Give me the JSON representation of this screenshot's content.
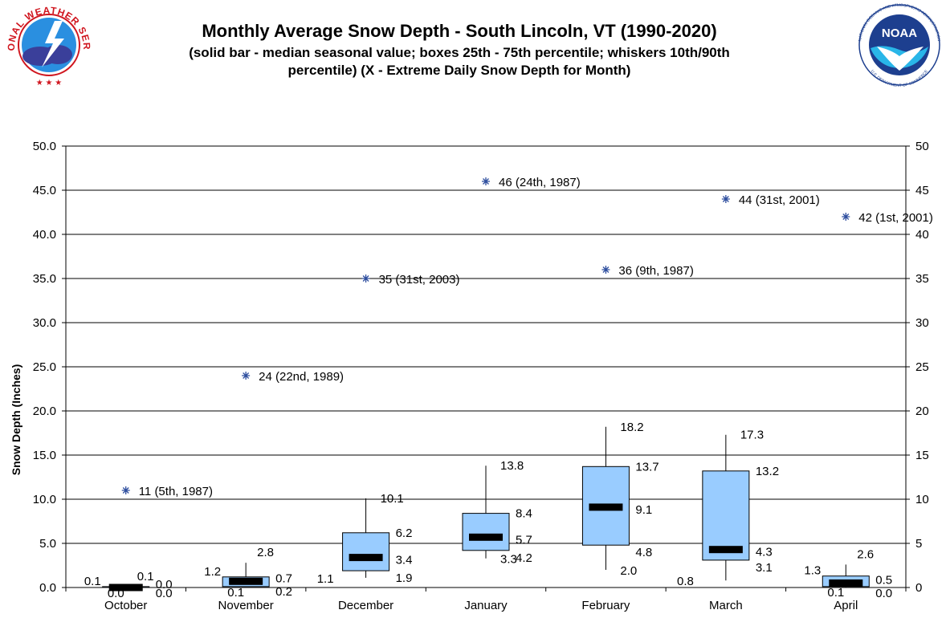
{
  "chart_data": {
    "type": "box",
    "title": "Monthly Average Snow Depth - South Lincoln, VT (1990-2020)",
    "subtitle_lines": [
      "(solid bar - median seasonal value; boxes 25th - 75th percentile; whiskers 10th/90th",
      "percentile) (X - Extreme Daily Snow Depth for Month)"
    ],
    "ylabel": "Snow Depth (Inches)",
    "ylim": [
      0,
      50
    ],
    "left_ticks": [
      "0.0",
      "5.0",
      "10.0",
      "15.0",
      "20.0",
      "25.0",
      "30.0",
      "35.0",
      "40.0",
      "45.0",
      "50.0"
    ],
    "right_ticks": [
      "0",
      "5",
      "10",
      "15",
      "20",
      "25",
      "30",
      "35",
      "40",
      "45",
      "50"
    ],
    "grid": true,
    "categories": [
      "October",
      "November",
      "December",
      "January",
      "February",
      "March",
      "April"
    ],
    "stats": [
      {
        "p10": 0.0,
        "p25": 0.0,
        "median": 0.0,
        "p75": 0.1,
        "p90": 0.1,
        "labels": {
          "p90": "0.1",
          "p75": "0.1",
          "median": "0.0",
          "p25": "0.0",
          "p10": "0.0"
        },
        "extreme": 11,
        "extreme_label": "11 (5th, 1987)"
      },
      {
        "p10": 0.2,
        "p25": 0.1,
        "median": 0.7,
        "p75": 1.2,
        "p90": 2.8,
        "labels": {
          "p90": "2.8",
          "p75": "1.2",
          "median": "0.7",
          "p25": "0.1",
          "p10": "0.2"
        },
        "extreme": 24,
        "extreme_label": "24 (22nd, 1989)"
      },
      {
        "p10": 1.1,
        "p25": 1.9,
        "median": 3.4,
        "p75": 6.2,
        "p90": 10.1,
        "labels": {
          "p90": "10.1",
          "p75": "6.2",
          "median": "3.4",
          "p25": "1.9",
          "p10": "1.1"
        },
        "extreme": 35,
        "extreme_label": "35 (31st, 2003)"
      },
      {
        "p10": 3.3,
        "p25": 4.2,
        "median": 5.7,
        "p75": 8.4,
        "p90": 13.8,
        "labels": {
          "p90": "13.8",
          "p75": "8.4",
          "median": "5.7",
          "p25": "4.2",
          "p10": "3.3"
        },
        "extreme": 46,
        "extreme_label": "46 (24th, 1987)"
      },
      {
        "p10": 2.0,
        "p25": 4.8,
        "median": 9.1,
        "p75": 13.7,
        "p90": 18.2,
        "labels": {
          "p90": "18.2",
          "p75": "13.7",
          "median": "9.1",
          "p25": "4.8",
          "p10": "2.0"
        },
        "extreme": 36,
        "extreme_label": "36 (9th, 1987)"
      },
      {
        "p10": 0.8,
        "p25": 3.1,
        "median": 4.3,
        "p75": 13.2,
        "p90": 17.3,
        "labels": {
          "p90": "17.3",
          "p75": "13.2",
          "median": "4.3",
          "p25": "3.1",
          "p10": "0.8"
        },
        "extreme": 44,
        "extreme_label": "44 (31st, 2001)"
      },
      {
        "p10": 0.0,
        "p25": 0.1,
        "median": 0.5,
        "p75": 1.3,
        "p90": 2.6,
        "labels": {
          "p90": "2.6",
          "p75": "1.3",
          "median": "0.5",
          "p25": "0.1",
          "p10": "0.0"
        },
        "extreme": 42,
        "extreme_label": "42 (1st, 2001)"
      }
    ],
    "colors": {
      "box_fill": "#99ccff",
      "box_stroke": "#000000",
      "median": "#000000",
      "extreme_marker": "#2f4f9f",
      "grid": "#000000"
    }
  },
  "logos": {
    "left": {
      "icon": "nws-logo-icon",
      "ring_text": "NATIONAL WEATHER SERVICE"
    },
    "right": {
      "icon": "noaa-logo-icon",
      "center_text": "NOAA",
      "ring_text": "NATIONAL OCEANIC AND ATMOSPHERIC ADMINISTRATION",
      "bottom_text": "U.S. DEPARTMENT OF COMMERCE"
    }
  }
}
